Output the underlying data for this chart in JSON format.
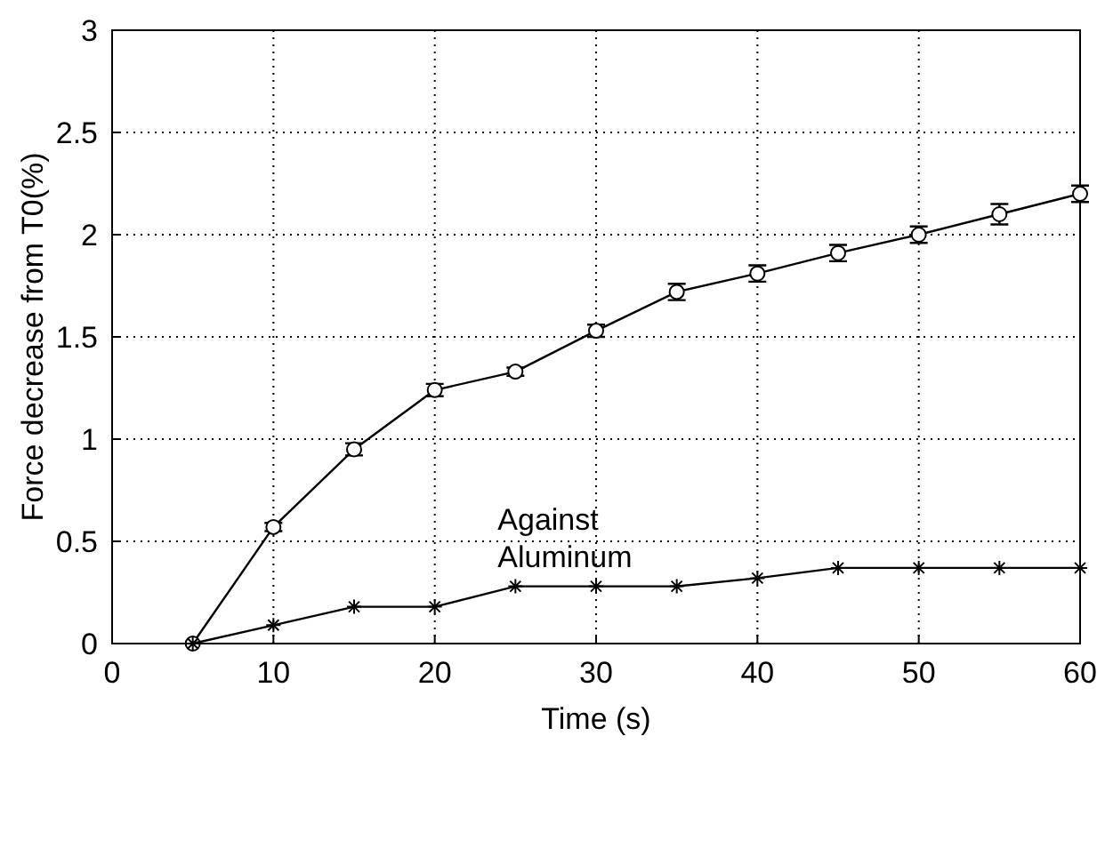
{
  "chart_data": {
    "type": "line",
    "xlabel": "Time (s)",
    "ylabel": "Force decrease from T0(%)",
    "x": [
      5,
      10,
      15,
      20,
      25,
      30,
      35,
      40,
      45,
      50,
      55,
      60
    ],
    "series": [
      {
        "color": "#000000",
        "marker": "circle",
        "values": [
          0,
          0.57,
          0.95,
          1.24,
          1.33,
          1.53,
          1.72,
          1.81,
          1.91,
          2.0,
          2.1,
          2.2
        ],
        "errors": [
          null,
          0.02,
          0.03,
          0.03,
          0.02,
          0.03,
          0.04,
          0.04,
          0.04,
          0.04,
          0.05,
          0.04
        ]
      },
      {
        "name": "Against Aluminum",
        "color": "#000000",
        "marker": "cross",
        "values": [
          0,
          0.09,
          0.18,
          0.18,
          0.28,
          0.28,
          0.28,
          0.32,
          0.37,
          0.37,
          0.37,
          0.37
        ]
      }
    ],
    "xlim": [
      0,
      60
    ],
    "xticks": [
      0,
      10,
      20,
      30,
      40,
      50,
      60
    ],
    "ylim": [
      0,
      3
    ],
    "yticks": [
      0,
      0.5,
      1,
      1.5,
      2,
      2.5,
      3
    ],
    "grid": true,
    "line_style": "solid"
  }
}
